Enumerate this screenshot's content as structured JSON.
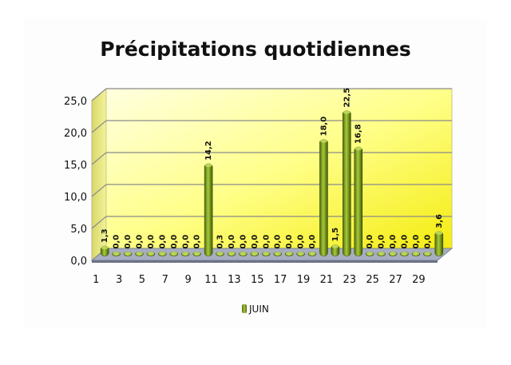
{
  "chart_data": {
    "type": "bar",
    "title": "Précipitations quotidiennes",
    "xlabel": "",
    "ylabel": "",
    "ylim": [
      0,
      25
    ],
    "yticks": [
      "0,0",
      "5,0",
      "10,0",
      "15,0",
      "20,0",
      "25,0"
    ],
    "categories": [
      "1",
      "2",
      "3",
      "4",
      "5",
      "6",
      "7",
      "8",
      "9",
      "10",
      "11",
      "12",
      "13",
      "14",
      "15",
      "16",
      "17",
      "18",
      "19",
      "20",
      "21",
      "22",
      "23",
      "24",
      "25",
      "26",
      "27",
      "28",
      "29",
      "30"
    ],
    "xtick_labels": [
      "1",
      "3",
      "5",
      "7",
      "9",
      "11",
      "13",
      "15",
      "17",
      "19",
      "21",
      "23",
      "25",
      "27",
      "29"
    ],
    "series": [
      {
        "name": "JUIN",
        "values": [
          1.3,
          0,
          0,
          0,
          0,
          0,
          0,
          0,
          0,
          14.2,
          0.3,
          0,
          0,
          0,
          0,
          0,
          0,
          0,
          0,
          18.0,
          1.5,
          22.5,
          16.8,
          0,
          0,
          0,
          0,
          0,
          0,
          3.6
        ],
        "labels": [
          "1,3",
          "0,0",
          "0,0",
          "0,0",
          "0,0",
          "0,0",
          "0,0",
          "0,0",
          "0,0",
          "14,2",
          "0,3",
          "0,0",
          "0,0",
          "0,0",
          "0,0",
          "0,0",
          "0,0",
          "0,0",
          "0,0",
          "18,0",
          "1,5",
          "22,5",
          "16,8",
          "0,0",
          "0,0",
          "0,0",
          "0,0",
          "0,0",
          "0,0",
          "3,6"
        ]
      }
    ],
    "grid": true,
    "legend_position": "bottom",
    "colors": {
      "bar": "#7a9a1e",
      "bar_dark": "#4f6b0c",
      "bar_light": "#c3dc5e",
      "wall": "#ffff66",
      "floor": "#9aa3b5"
    }
  }
}
